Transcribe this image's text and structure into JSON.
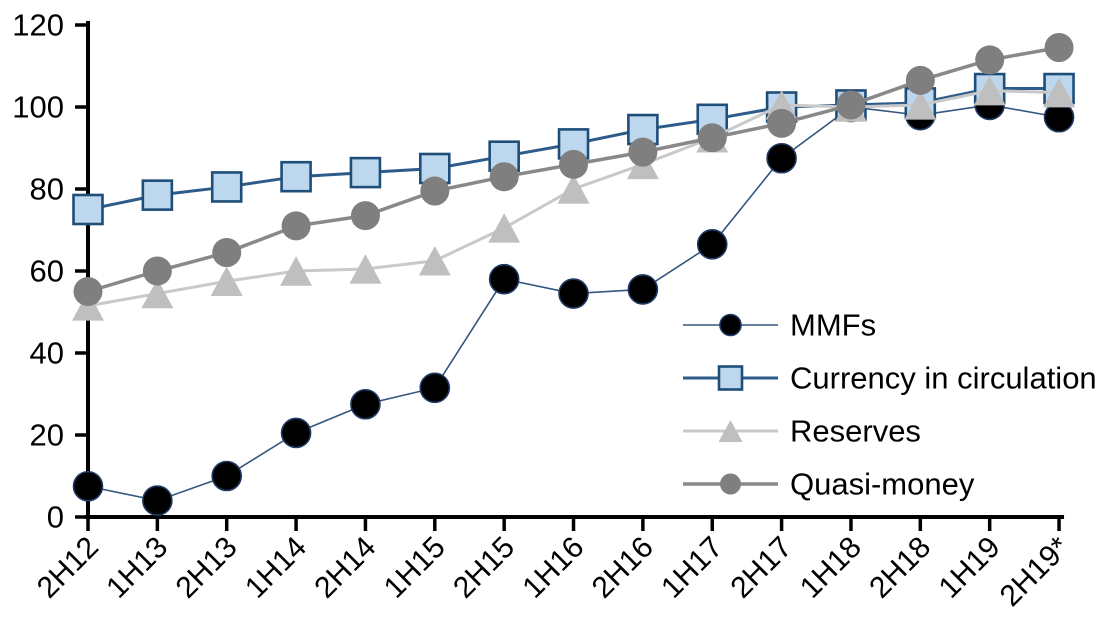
{
  "chart_data": {
    "type": "line",
    "title": "",
    "xlabel": "",
    "ylabel": "",
    "grid": false,
    "background": "#ffffff",
    "axis_color": "#000000",
    "ylim": [
      0,
      120
    ],
    "yticks": [
      0,
      20,
      40,
      60,
      80,
      100,
      120
    ],
    "legend_position": "inside-right",
    "categories": [
      "2H12",
      "1H13",
      "2H13",
      "1H14",
      "2H14",
      "1H15",
      "2H15",
      "1H16",
      "2H16",
      "1H17",
      "2H17",
      "1H18",
      "2H18",
      "1H19",
      "2H19*"
    ],
    "series": [
      {
        "name": "MMFs",
        "marker": "circle",
        "marker_fill": "#000000",
        "marker_stroke": "#1F3864",
        "line_color": "#33577F",
        "line_width": 1.6,
        "values": [
          7.5,
          4,
          10,
          20.5,
          27.5,
          31.5,
          58,
          54.5,
          55.5,
          66.5,
          87.5,
          100,
          98,
          100.5,
          97.5
        ]
      },
      {
        "name": "Currency in circulation",
        "marker": "square",
        "marker_fill": "#BDD7EE",
        "marker_stroke": "#1F4E79",
        "line_color": "#2E5C8A",
        "line_width": 3,
        "values": [
          75,
          78.5,
          80.5,
          83,
          84,
          85,
          88,
          91,
          94.5,
          97,
          100,
          100.5,
          101,
          104.5,
          104.5
        ]
      },
      {
        "name": "Reserves",
        "marker": "triangle",
        "marker_fill": "#BFBFBF",
        "marker_stroke": "none",
        "line_color": "#C9C9C9",
        "line_width": 3,
        "values": [
          51.5,
          54.5,
          57.5,
          60,
          60.5,
          62.5,
          70.5,
          80,
          86,
          92.5,
          100.5,
          100,
          100.5,
          104,
          103.5
        ]
      },
      {
        "name": "Quasi-money",
        "marker": "circle",
        "marker_fill": "#7F7F7F",
        "marker_stroke": "none",
        "line_color": "#898989",
        "line_width": 3.5,
        "values": [
          55,
          60,
          64.5,
          71,
          73.5,
          79.5,
          83,
          86,
          89,
          92.5,
          96,
          100.5,
          106.5,
          111.5,
          114.5
        ]
      }
    ]
  }
}
